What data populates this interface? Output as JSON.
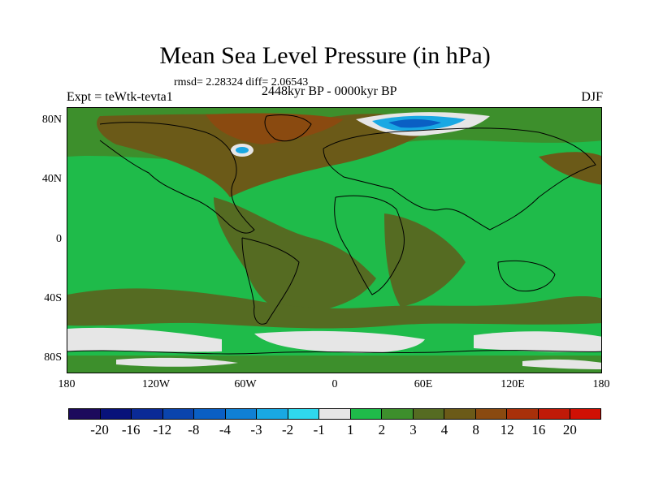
{
  "title": "Mean Sea Level Pressure (in hPa)",
  "stats_text": "rmsd= 2.28324 diff= 2.06543",
  "expt_label": "Expt = teWtk-tevta1",
  "period_label": "2448kyr BP - 0000kyr BP",
  "season_label": "DJF",
  "y_axis_labels": [
    "80N",
    "40N",
    "0",
    "40S",
    "80S"
  ],
  "x_axis_labels": [
    "180",
    "120W",
    "60W",
    "0",
    "60E",
    "120E",
    "180"
  ],
  "colorbar": {
    "labels": [
      "-20",
      "-16",
      "-12",
      "-8",
      "-4",
      "-3",
      "-2",
      "-1",
      "1",
      "2",
      "3",
      "4",
      "8",
      "12",
      "16",
      "20"
    ],
    "colors": [
      "#1c0a5c",
      "#08127a",
      "#0a2a96",
      "#0a44ad",
      "#0a5fc4",
      "#1080d4",
      "#19a8e3",
      "#2fd8ee",
      "#e6e6e6",
      "#1fbb4a",
      "#3d8f2c",
      "#556b22",
      "#6b5a18",
      "#8a4a10",
      "#a8300a",
      "#c01a08",
      "#d01004"
    ]
  },
  "map": {
    "projection": "cylindrical-equidistant",
    "lon_range": [
      -180,
      180
    ],
    "lat_range": [
      -90,
      90
    ],
    "ocean_color": "#1fbb4a",
    "land_color": "#556b22"
  }
}
